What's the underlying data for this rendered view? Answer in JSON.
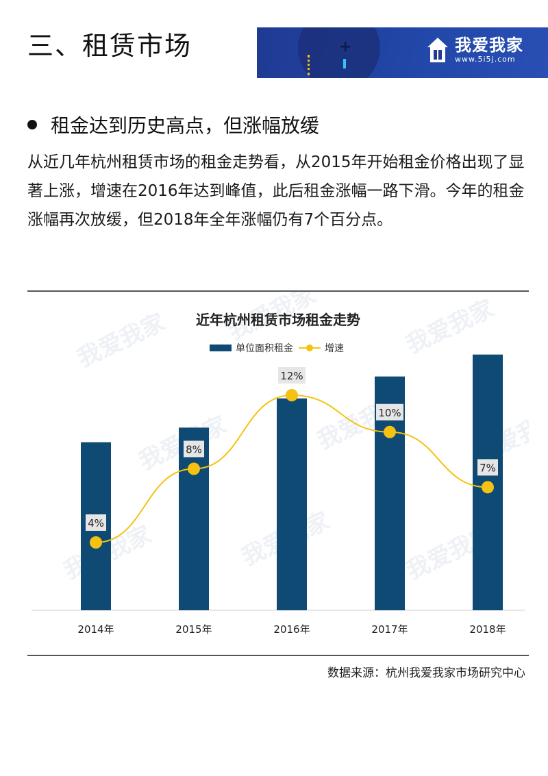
{
  "section": {
    "title": "三、租赁市场"
  },
  "brand": {
    "name": "我爱我家",
    "url": "www.5i5j.com",
    "accent": "#1f3a93"
  },
  "bullet": {
    "heading": "租金达到历史高点，但涨幅放缓"
  },
  "paragraph": {
    "text": "从近几年杭州租赁市场的租金走势看，从2015年开始租金价格出现了显著上涨，增速在2016年达到峰值，此后租金涨幅一路下滑。今年的租金涨幅再次放缓，但2018年全年涨幅仍有7个百分点。"
  },
  "chart_data": {
    "type": "bar",
    "title": "近年杭州租赁市场租金走势",
    "categories": [
      "2014年",
      "2015年",
      "2016年",
      "2017年",
      "2018年"
    ],
    "series": [
      {
        "name": "单位面积租金",
        "kind": "bar",
        "color": "#0e4a73",
        "values": [
          46,
          50,
          58,
          64,
          70
        ]
      },
      {
        "name": "增速",
        "kind": "line",
        "color": "#f5c211",
        "values": [
          4,
          8,
          12,
          10,
          7
        ],
        "labels": [
          "4%",
          "8%",
          "12%",
          "10%",
          "7%"
        ]
      }
    ],
    "legend_position": "top-center",
    "grid": false
  },
  "source": {
    "text": "数据来源：杭州我爱我家市场研究中心"
  }
}
